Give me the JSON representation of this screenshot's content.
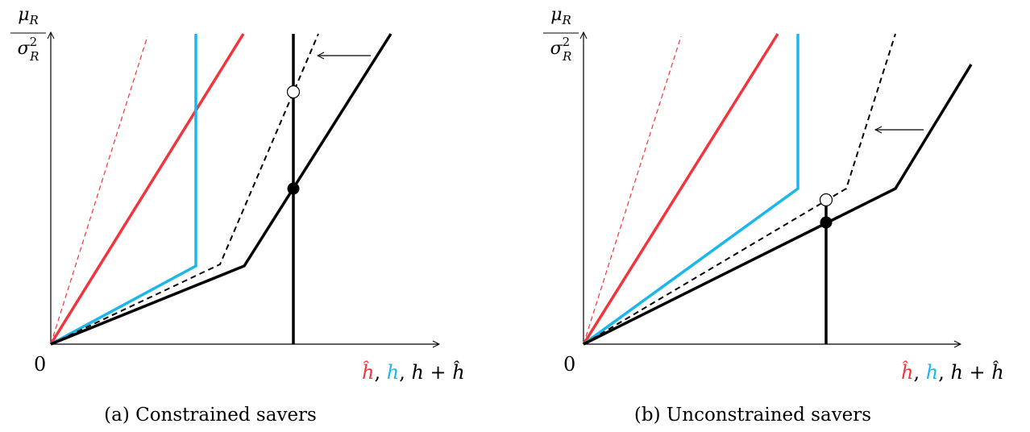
{
  "colors": {
    "red": "#f0363c",
    "blue": "#1bb6ea",
    "black": "#000000"
  },
  "panels": [
    {
      "caption": "(a) Constrained savers",
      "y_label_num": "μ",
      "y_label_num_sub": "R",
      "y_label_den": "σ",
      "y_label_den_sup": "2",
      "y_label_den_sub": "R",
      "origin_label": "0",
      "x_label_parts": [
        {
          "text": "ĥ",
          "color": "red"
        },
        {
          "text": ", ",
          "color": "black"
        },
        {
          "text": "h",
          "color": "blue"
        },
        {
          "text": ", ",
          "color": "black"
        },
        {
          "text": "h + ĥ",
          "color": "black"
        }
      ]
    },
    {
      "caption": "(b) Unconstrained savers",
      "y_label_num": "μ",
      "y_label_num_sub": "R",
      "y_label_den": "σ",
      "y_label_den_sup": "2",
      "y_label_den_sub": "R",
      "origin_label": "0",
      "x_label_parts": [
        {
          "text": "ĥ",
          "color": "red"
        },
        {
          "text": ", ",
          "color": "black"
        },
        {
          "text": "h",
          "color": "blue"
        },
        {
          "text": ", ",
          "color": "black"
        },
        {
          "text": "h + ĥ",
          "color": "black"
        }
      ]
    }
  ]
}
